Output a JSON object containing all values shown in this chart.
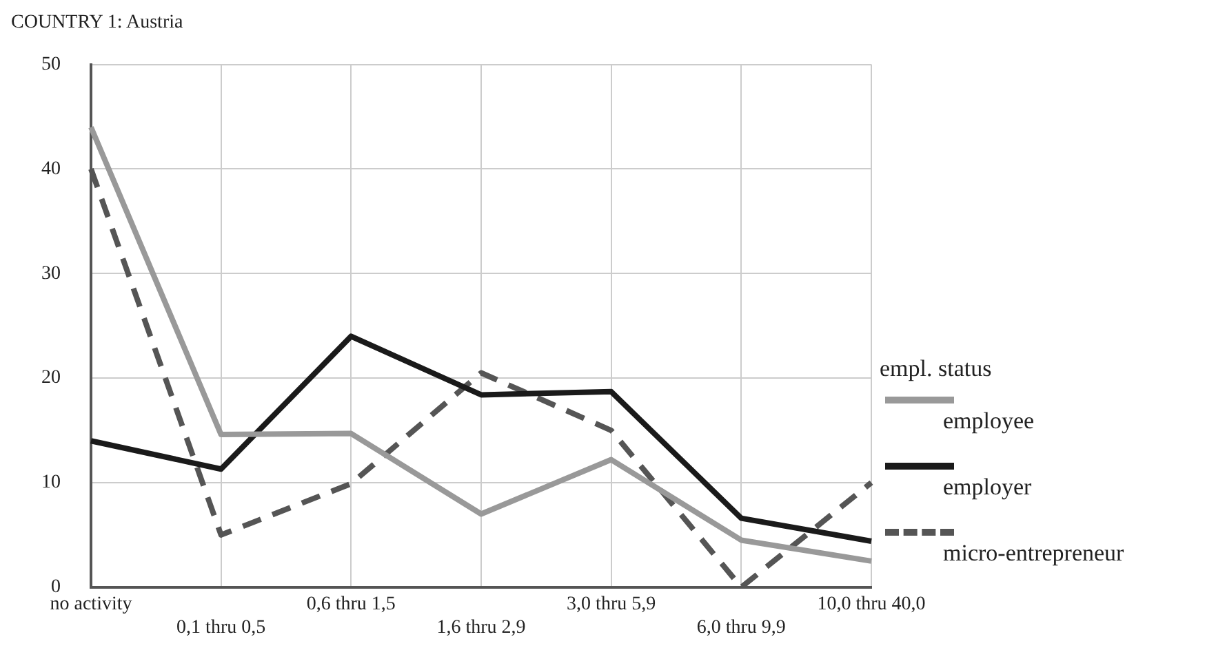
{
  "chart_data": {
    "type": "line",
    "title": "COUNTRY 1: Austria",
    "categories": [
      "no activity",
      "0,1 thru 0,5",
      "0,6 thru 1,5",
      "1,6 thru 2,9",
      "3,0 thru 5,9",
      "6,0 thru 9,9",
      "10,0 thru 40,0"
    ],
    "series": [
      {
        "name": "employee",
        "color": "#999999",
        "values": [
          44,
          14.6,
          14.7,
          7,
          12.2,
          4.5,
          2.5
        ]
      },
      {
        "name": "employer",
        "color": "#1a1a1a",
        "values": [
          14,
          11.3,
          24,
          18.4,
          18.7,
          6.6,
          4.4
        ]
      },
      {
        "name": "micro-entrepreneur",
        "color": "#555555",
        "line_style": "dashed",
        "values": [
          40,
          5,
          9.9,
          20.5,
          15,
          0,
          10
        ]
      }
    ],
    "legend_title": "empl. status",
    "legend": "right",
    "grid": true,
    "marker": "none",
    "ylim": [
      0,
      50
    ],
    "yticks": [
      0,
      10,
      20,
      30,
      40,
      50
    ]
  }
}
